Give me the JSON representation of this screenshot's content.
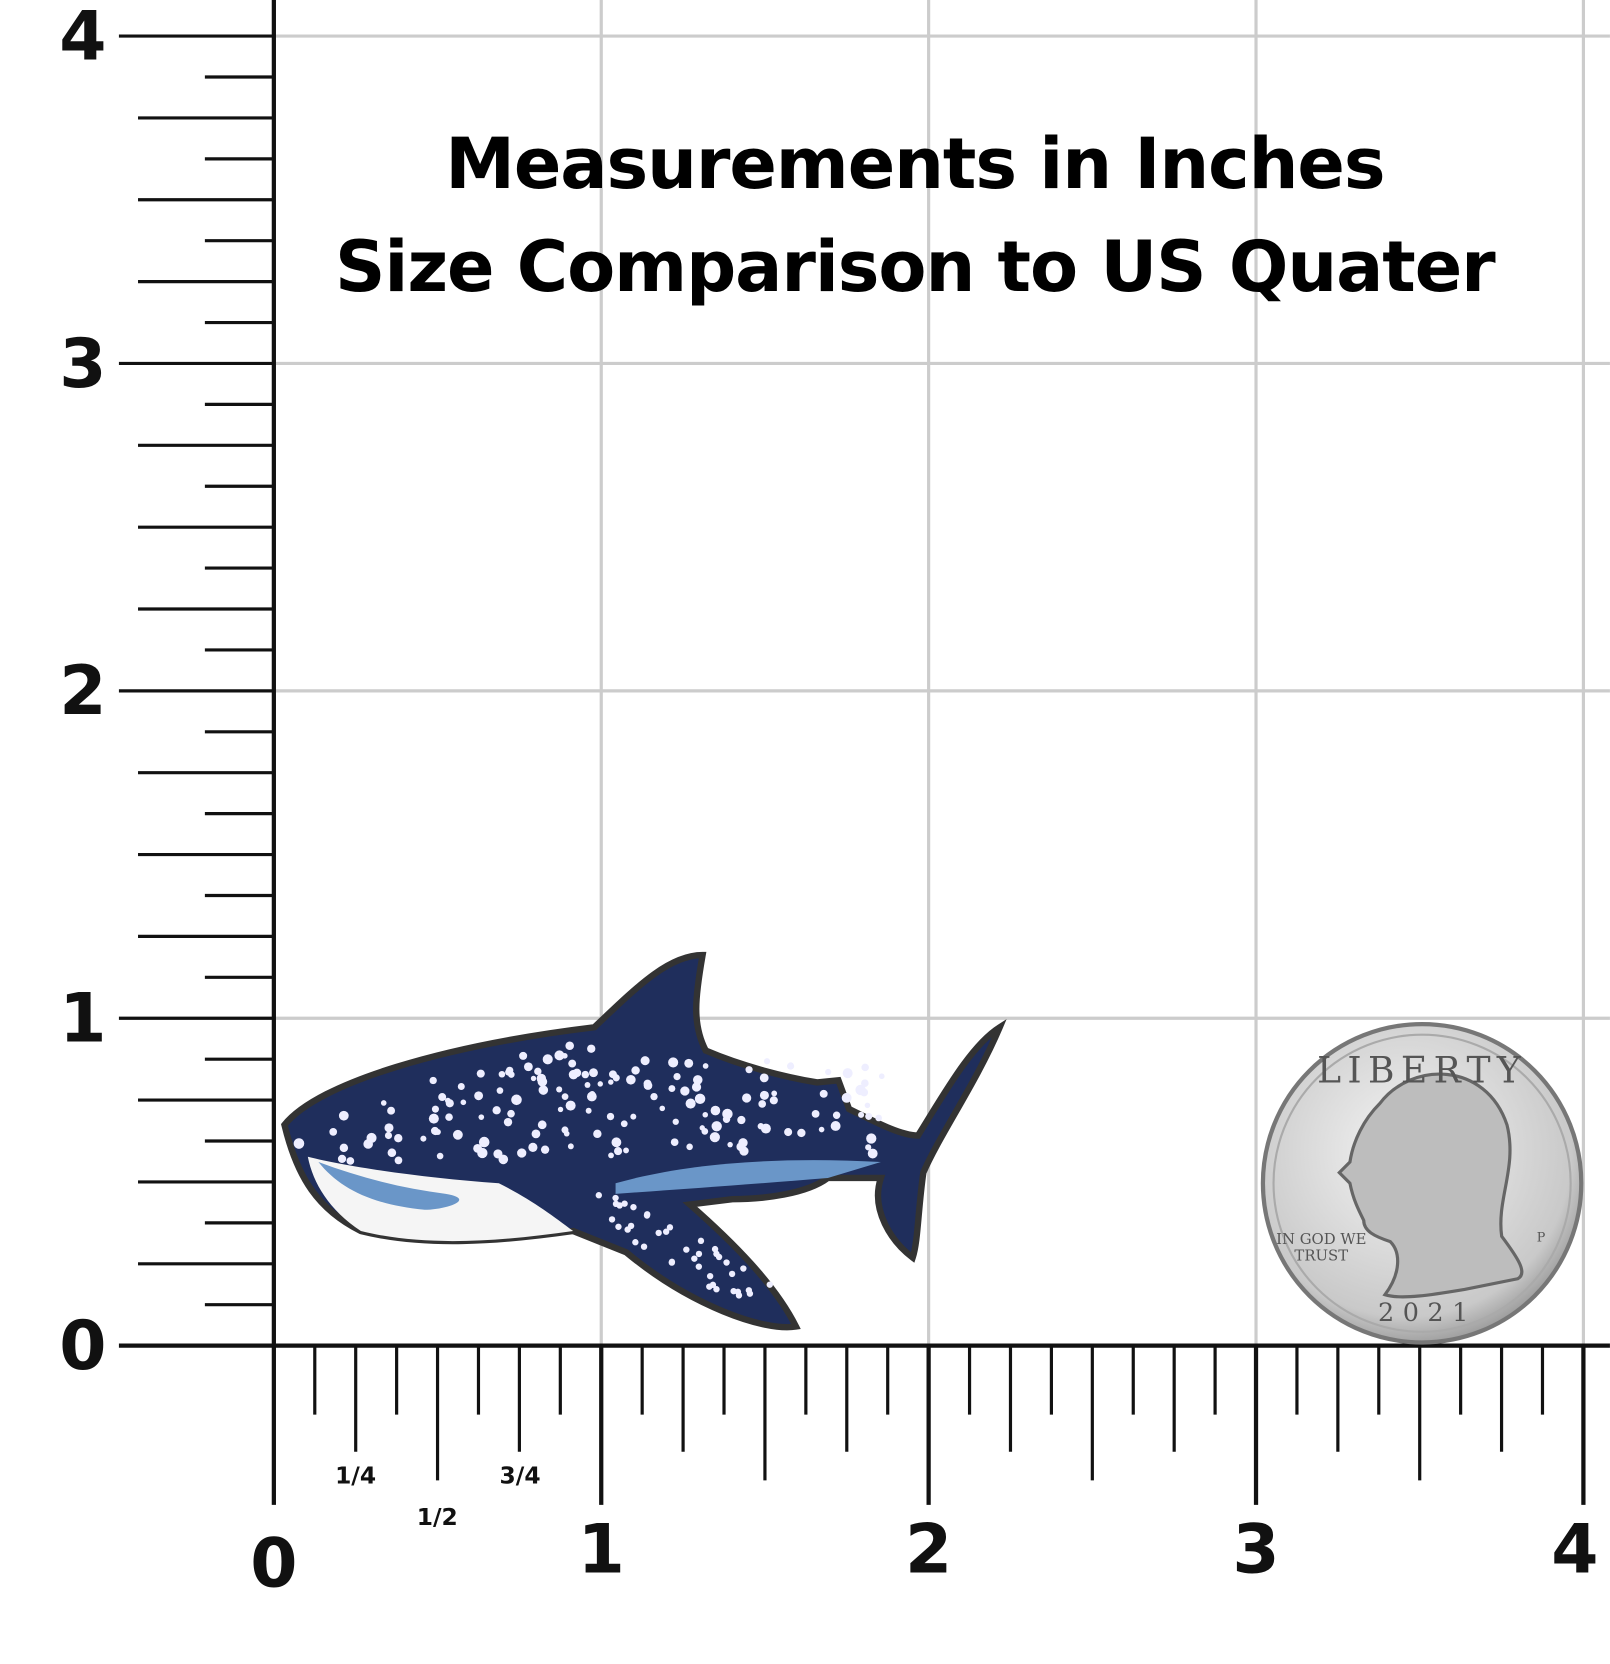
{
  "header": {
    "lines": [
      "Measurements in Inches",
      "Size Comparison to US Quater"
    ]
  },
  "ruler": {
    "y_labels": [
      "0",
      "1",
      "2",
      "3",
      "4"
    ],
    "x_labels": [
      "0",
      "1",
      "2",
      "3",
      "4"
    ],
    "fractions": [
      "1/4",
      "1/2",
      "3/4"
    ]
  },
  "coin": {
    "top": "LIBERTY",
    "motto": [
      "IN GOD WE",
      "TRUST"
    ],
    "year": "2021",
    "mint": "P"
  }
}
